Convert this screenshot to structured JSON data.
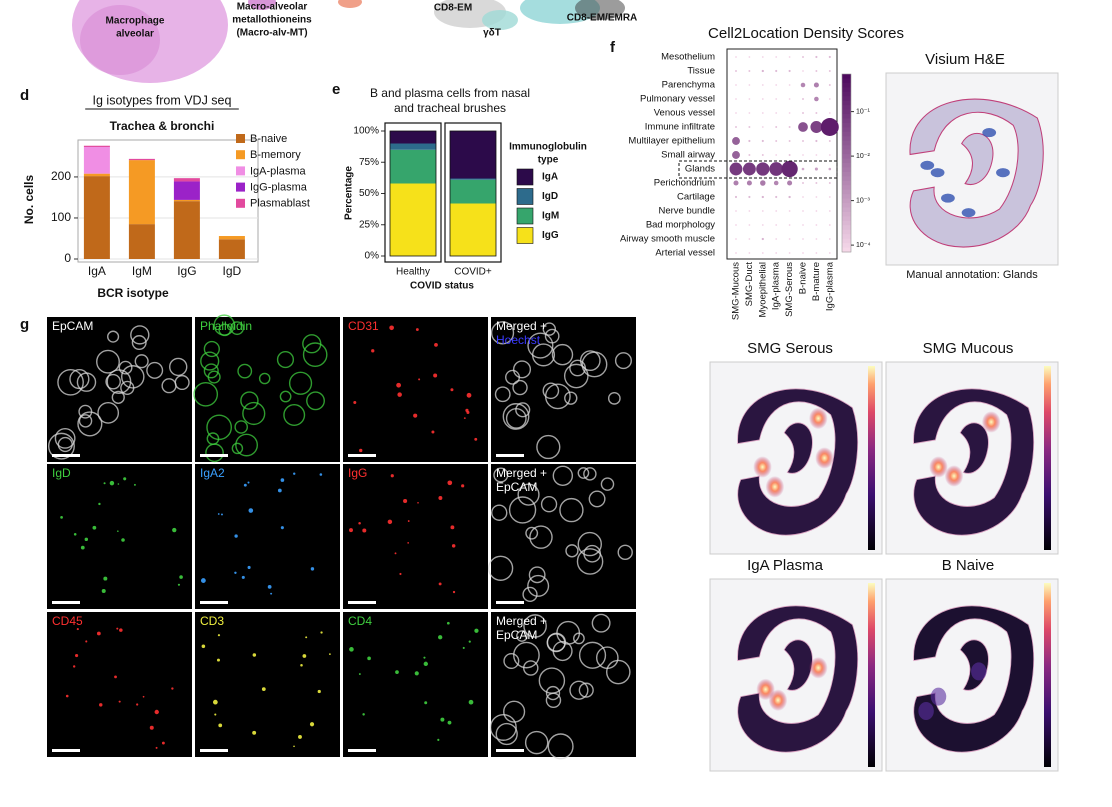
{
  "umap": {
    "labels": [
      {
        "lines": [
          "Macrophage",
          "alveolar"
        ]
      },
      {
        "lines": [
          "Macro-alveolar",
          "metallothioneins",
          "(Macro-alv-MT)"
        ]
      },
      {
        "lines": [
          "CD8-EM"
        ]
      },
      {
        "lines": [
          "γδT"
        ]
      },
      {
        "lines": [
          "CD8-EM/EMRA"
        ]
      }
    ]
  },
  "panel_letters": [
    "d",
    "e",
    "f",
    "g"
  ],
  "chart_data": [
    {
      "type": "stacked_bar",
      "title": "Ig isotypes from VDJ seq",
      "subtitle": "Trachea & bronchi",
      "y_label": "No. cells",
      "x_label": "BCR isotype",
      "categories": [
        "IgA",
        "IgM",
        "IgG",
        "IgD"
      ],
      "series": [
        {
          "name": "B-naive",
          "color": "#c0691a",
          "values": [
            202,
            85,
            141,
            48
          ]
        },
        {
          "name": "B-memory",
          "color": "#f59a24",
          "values": [
            6,
            156,
            3,
            8
          ]
        },
        {
          "name": "IgA-plasma",
          "color": "#f08ee4",
          "values": [
            65,
            0,
            0,
            0
          ]
        },
        {
          "name": "IgG-plasma",
          "color": "#9b22c8",
          "values": [
            0,
            0,
            45,
            0
          ]
        },
        {
          "name": "Plasmablast",
          "color": "#e24a9e",
          "values": [
            3,
            3,
            8,
            0
          ]
        }
      ],
      "ylim": [
        0,
        290
      ],
      "yticks": [
        0,
        100,
        200
      ],
      "grid": true
    },
    {
      "type": "stacked_percent_bar",
      "title": [
        "B and plasma cells from nasal",
        "and tracheal brushes"
      ],
      "y_label": "Percentage",
      "x_label": "COVID status",
      "legend_title": [
        "Immunoglobulin",
        "type"
      ],
      "categories": [
        "Healthy",
        "COVID+"
      ],
      "series": [
        {
          "name": "IgA",
          "color": "#2c0a4a",
          "values": [
            10,
            38
          ]
        },
        {
          "name": "IgD",
          "color": "#2d6b8c",
          "values": [
            5,
            1
          ]
        },
        {
          "name": "IgM",
          "color": "#36a56c",
          "values": [
            27,
            19
          ]
        },
        {
          "name": "IgG",
          "color": "#f6e11a",
          "values": [
            58,
            42
          ]
        }
      ],
      "ylim": [
        0,
        100
      ],
      "yticks": [
        {
          "value": 0,
          "label": "0%"
        },
        {
          "value": 25,
          "label": "25%"
        },
        {
          "value": 50,
          "label": "50%"
        },
        {
          "value": 75,
          "label": "75%"
        },
        {
          "value": 100,
          "label": "100%"
        }
      ]
    },
    {
      "type": "dot_heatmap",
      "title": "Cell2Location Density Scores",
      "rows": [
        "Mesothelium",
        "Tissue",
        "Parenchyma",
        "Pulmonary vessel",
        "Venous vessel",
        "Immune infiltrate",
        "Multilayer epithelium",
        "Small airway",
        "Glands",
        "Perichondrium",
        "Cartilage",
        "Nerve bundle",
        "Bad morphology",
        "Airway smooth muscle",
        "Arterial vessel"
      ],
      "columns": [
        "SMG-Mucous",
        "SMG-Duct",
        "Myoepithelial",
        "IgA-plasma",
        "SMG-Serous",
        "B-naive",
        "B-mature",
        "IgG-plasma"
      ],
      "values": [
        [
          0.0001,
          0.0001,
          0.0001,
          0.0001,
          0.0001,
          0.0002,
          0.0003,
          0.0003
        ],
        [
          0.0002,
          0.0002,
          0.0004,
          0.0003,
          0.0003,
          0.0001,
          0.0002,
          0.0002
        ],
        [
          0.0001,
          0.0001,
          0.0001,
          0.0001,
          0.0001,
          0.003,
          0.004,
          0.0002
        ],
        [
          0.0001,
          0.0001,
          0.0001,
          0.0001,
          0.0001,
          0.0002,
          0.003,
          0.0001
        ],
        [
          0.0001,
          0.0001,
          0.0001,
          0.0001,
          0.0001,
          0.0002,
          0.0002,
          0.0001
        ],
        [
          0.0002,
          0.0002,
          0.0001,
          0.0002,
          0.0002,
          0.03,
          0.06,
          0.3
        ],
        [
          0.015,
          0.0003,
          0.0003,
          0.0002,
          0.0002,
          0.0002,
          0.0003,
          0.0002
        ],
        [
          0.015,
          0.0002,
          0.0002,
          0.0001,
          0.0002,
          0.0001,
          0.0001,
          0.0001
        ],
        [
          0.08,
          0.08,
          0.09,
          0.1,
          0.2,
          0.0006,
          0.001,
          0.0006
        ],
        [
          0.004,
          0.004,
          0.005,
          0.003,
          0.004,
          0.0002,
          0.0002,
          0.0002
        ],
        [
          0.0003,
          0.0003,
          0.0004,
          0.0003,
          0.0004,
          0.0001,
          0.0001,
          0.0001
        ],
        [
          0.0001,
          0.0001,
          0.0001,
          0.0001,
          0.0001,
          0.0001,
          0.0001,
          0.0001
        ],
        [
          0.0001,
          0.0001,
          0.0001,
          0.0001,
          0.0001,
          0.0001,
          0.0001,
          0.0001
        ],
        [
          0.0001,
          0.0001,
          0.0004,
          0.0001,
          0.0001,
          0.0001,
          0.0001,
          0.0001
        ],
        [
          0.0001,
          0.0001,
          0.0001,
          0.0001,
          0.0001,
          0.0001,
          0.0001,
          0.0001
        ]
      ],
      "color_scale": "log",
      "colors": [
        "#f9dcec",
        "#4e0a5e"
      ],
      "clim": [
        7e-05,
        0.7
      ],
      "cticks": [
        {
          "value": 0.1,
          "label": "10⁻¹"
        },
        {
          "value": 0.01,
          "label": "10⁻²"
        },
        {
          "value": 0.001,
          "label": "10⁻³"
        },
        {
          "value": 0.0001,
          "label": "10⁻⁴"
        }
      ]
    }
  ],
  "spatial": {
    "visium_title": "Visium H&E",
    "visium_caption": "Manual annotation: Glands",
    "maps": [
      "SMG Serous",
      "SMG Mucous",
      "IgA Plasma",
      "B Naive"
    ]
  },
  "microscopy": {
    "tiles": [
      {
        "lines": [
          {
            "text": "EpCAM",
            "color": "#ffffff"
          }
        ]
      },
      {
        "lines": [
          {
            "text": "Phalloidin",
            "color": "#3fcf3f"
          }
        ]
      },
      {
        "lines": [
          {
            "text": "CD31",
            "color": "#ff3030"
          }
        ]
      },
      {
        "lines": [
          {
            "text": "Merged +",
            "color": "#ffffff"
          },
          {
            "text": "Hoechst",
            "color": "#3a3aff"
          }
        ]
      },
      {
        "lines": [
          {
            "text": "IgD",
            "color": "#3fcf3f"
          }
        ]
      },
      {
        "lines": [
          {
            "text": "IgA2",
            "color": "#3aa0ff"
          }
        ]
      },
      {
        "lines": [
          {
            "text": "IgG",
            "color": "#ff3030"
          }
        ]
      },
      {
        "lines": [
          {
            "text": "Merged +",
            "color": "#ffffff"
          },
          {
            "text": "EpCAM",
            "color": "#ffffff"
          }
        ]
      },
      {
        "lines": [
          {
            "text": "CD45",
            "color": "#ff3030"
          }
        ]
      },
      {
        "lines": [
          {
            "text": "CD3",
            "color": "#f0f040"
          }
        ]
      },
      {
        "lines": [
          {
            "text": "CD4",
            "color": "#3fcf3f"
          }
        ]
      },
      {
        "lines": [
          {
            "text": "Merged +",
            "color": "#ffffff"
          },
          {
            "text": "EpCAM",
            "color": "#ffffff"
          }
        ]
      }
    ]
  }
}
